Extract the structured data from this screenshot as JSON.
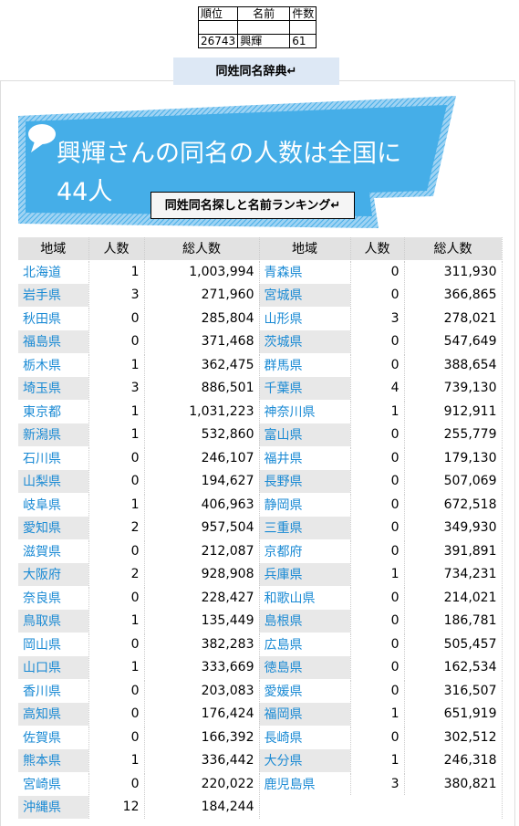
{
  "top_table": {
    "header": [
      "順位",
      "名前",
      "件数"
    ],
    "rows": [
      [
        "26743",
        "興輝",
        "61"
      ]
    ]
  },
  "site_title": "同姓同名辞典↵",
  "banner": {
    "title": "興輝さんの同名の人数は全国に44人",
    "button": "同姓同名探しと名前ランキング↵"
  },
  "table": {
    "header": [
      "地域",
      "人数",
      "総人数"
    ],
    "rows": [
      [
        "北海道",
        1,
        "1,003,994",
        "青森県",
        0,
        "311,930"
      ],
      [
        "岩手県",
        3,
        "271,960",
        "宮城県",
        0,
        "366,865"
      ],
      [
        "秋田県",
        0,
        "285,804",
        "山形県",
        3,
        "278,021"
      ],
      [
        "福島県",
        0,
        "371,468",
        "茨城県",
        0,
        "547,649"
      ],
      [
        "栃木県",
        1,
        "362,475",
        "群馬県",
        0,
        "388,654"
      ],
      [
        "埼玉県",
        3,
        "886,501",
        "千葉県",
        4,
        "739,130"
      ],
      [
        "東京都",
        1,
        "1,031,223",
        "神奈川県",
        1,
        "912,911"
      ],
      [
        "新潟県",
        1,
        "532,860",
        "富山県",
        0,
        "255,779"
      ],
      [
        "石川県",
        0,
        "246,107",
        "福井県",
        0,
        "179,130"
      ],
      [
        "山梨県",
        0,
        "194,627",
        "長野県",
        0,
        "507,069"
      ],
      [
        "岐阜県",
        1,
        "406,963",
        "静岡県",
        0,
        "672,518"
      ],
      [
        "愛知県",
        2,
        "957,504",
        "三重県",
        0,
        "349,930"
      ],
      [
        "滋賀県",
        0,
        "212,087",
        "京都府",
        0,
        "391,891"
      ],
      [
        "大阪府",
        2,
        "928,908",
        "兵庫県",
        1,
        "734,231"
      ],
      [
        "奈良県",
        0,
        "228,427",
        "和歌山県",
        0,
        "214,021"
      ],
      [
        "鳥取県",
        1,
        "135,449",
        "島根県",
        0,
        "186,781"
      ],
      [
        "岡山県",
        0,
        "382,283",
        "広島県",
        0,
        "505,457"
      ],
      [
        "山口県",
        1,
        "333,669",
        "徳島県",
        0,
        "162,534"
      ],
      [
        "香川県",
        0,
        "203,083",
        "愛媛県",
        0,
        "316,507"
      ],
      [
        "高知県",
        0,
        "176,424",
        "福岡県",
        1,
        "651,919"
      ],
      [
        "佐賀県",
        0,
        "166,392",
        "長崎県",
        0,
        "302,512"
      ],
      [
        "熊本県",
        1,
        "336,442",
        "大分県",
        1,
        "246,318"
      ],
      [
        "宮崎県",
        0,
        "220,022",
        "鹿児島県",
        3,
        "380,821"
      ],
      [
        "沖縄県",
        12,
        "184,244"
      ]
    ]
  }
}
